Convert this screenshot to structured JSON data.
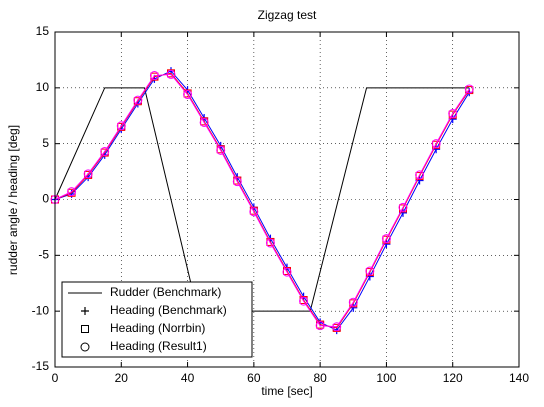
{
  "chart_data": {
    "type": "line",
    "title": "Zigzag test",
    "x_label": "time [sec]",
    "y_label": "rudder angle / heading [deg]",
    "xlim": [
      0,
      140
    ],
    "xticks": [
      0,
      20,
      40,
      60,
      80,
      100,
      120,
      140
    ],
    "ylim": [
      -15,
      15
    ],
    "yticks": [
      -15,
      -10,
      -5,
      0,
      5,
      10,
      15
    ],
    "grid": true,
    "legend": "lower left",
    "series": [
      {
        "name": "Rudder (Benchmark)",
        "color": "#000000",
        "marker": "none",
        "x": [
          0,
          15,
          27,
          43,
          77,
          94,
          125
        ],
        "values": [
          0,
          10,
          10,
          -10,
          -10,
          10,
          10
        ]
      },
      {
        "name": "Heading (Benchmark)",
        "color": "#0000ff",
        "marker": "plus",
        "x": [
          0,
          5,
          10,
          15,
          20,
          25,
          30,
          35,
          40,
          45,
          50,
          55,
          60,
          65,
          70,
          75,
          80,
          85,
          90,
          95,
          100,
          105,
          110,
          115,
          120,
          125
        ],
        "values": [
          0,
          0.5,
          2.0,
          4.0,
          6.3,
          8.6,
          10.8,
          11.5,
          9.8,
          7.3,
          4.8,
          2.0,
          -0.7,
          -3.5,
          -6.1,
          -8.7,
          -11.0,
          -11.7,
          -9.7,
          -6.9,
          -4.0,
          -1.2,
          1.7,
          4.5,
          7.2,
          9.6
        ]
      },
      {
        "name": "Heading (Norrbin)",
        "color": "#ff0000",
        "marker": "square",
        "x": [
          0,
          5,
          10,
          15,
          20,
          25,
          30,
          35,
          40,
          45,
          50,
          55,
          60,
          65,
          70,
          75,
          80,
          85,
          90,
          95,
          100,
          105,
          110,
          115,
          120,
          125
        ],
        "values": [
          0,
          0.6,
          2.2,
          4.2,
          6.5,
          8.8,
          11.0,
          11.3,
          9.5,
          7.0,
          4.5,
          1.7,
          -1.0,
          -3.8,
          -6.4,
          -9.0,
          -11.2,
          -11.5,
          -9.3,
          -6.5,
          -3.6,
          -0.8,
          2.1,
          4.9,
          7.6,
          9.8
        ]
      },
      {
        "name": "Heading (Result1)",
        "color": "#ff00ff",
        "marker": "circle",
        "x": [
          0,
          5,
          10,
          15,
          20,
          25,
          30,
          35,
          40,
          45,
          50,
          55,
          60,
          65,
          70,
          75,
          80,
          85,
          90,
          95,
          100,
          105,
          110,
          115,
          120,
          125
        ],
        "values": [
          0,
          0.7,
          2.3,
          4.3,
          6.6,
          8.9,
          11.1,
          11.2,
          9.4,
          6.9,
          4.4,
          1.6,
          -1.1,
          -3.9,
          -6.5,
          -9.1,
          -11.3,
          -11.4,
          -9.2,
          -6.4,
          -3.5,
          -0.7,
          2.2,
          5.0,
          7.7,
          9.9
        ]
      }
    ]
  }
}
